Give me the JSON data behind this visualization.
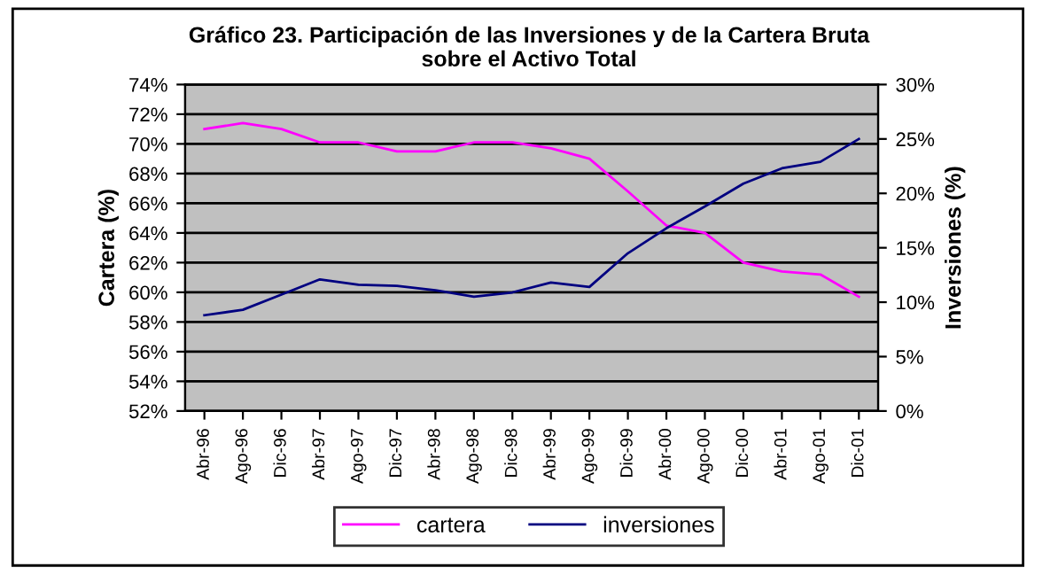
{
  "chart_data": {
    "type": "line",
    "title": "Gráfico 23. Participación de las Inversiones y de la Cartera Bruta\nsobre el Activo Total",
    "ylabel": "Cartera (%)",
    "y2label": "Inversiones (%)",
    "categories": [
      "Abr-96",
      "Ago-96",
      "Dic-96",
      "Abr-97",
      "Ago-97",
      "Dic-97",
      "Abr-98",
      "Ago-98",
      "Dic-98",
      "Abr-99",
      "Ago-99",
      "Dic-99",
      "Abr-00",
      "Ago-00",
      "Dic-00",
      "Abr-01",
      "Ago-01",
      "Dic-01"
    ],
    "series": [
      {
        "name": "cartera",
        "color": "#ff00ff",
        "values": [
          71.0,
          71.4,
          71.0,
          70.1,
          70.1,
          69.5,
          69.5,
          70.1,
          70.1,
          69.7,
          69.0,
          66.8,
          64.5,
          64.0,
          62.0,
          61.4,
          61.2,
          59.7
        ]
      },
      {
        "name": "inversiones",
        "color": "#000080",
        "axis": "y2",
        "values": [
          8.8,
          9.3,
          10.7,
          12.1,
          11.6,
          11.5,
          11.1,
          10.5,
          10.9,
          11.8,
          11.4,
          14.5,
          16.8,
          18.8,
          20.9,
          22.3,
          22.9,
          25.0
        ]
      }
    ],
    "ylim": [
      52,
      74
    ],
    "yticks": [
      {
        "value": 52,
        "label": "52%"
      },
      {
        "value": 54,
        "label": "54%"
      },
      {
        "value": 56,
        "label": "56%"
      },
      {
        "value": 58,
        "label": "58%"
      },
      {
        "value": 60,
        "label": "60%"
      },
      {
        "value": 62,
        "label": "62%"
      },
      {
        "value": 64,
        "label": "64%"
      },
      {
        "value": 66,
        "label": "66%"
      },
      {
        "value": 68,
        "label": "68%"
      },
      {
        "value": 70,
        "label": "70%"
      },
      {
        "value": 72,
        "label": "72%"
      },
      {
        "value": 74,
        "label": "74%"
      }
    ],
    "y2lim": [
      0,
      30
    ],
    "y2ticks": [
      {
        "value": 0,
        "label": "0%"
      },
      {
        "value": 5,
        "label": "5%"
      },
      {
        "value": 10,
        "label": "10%"
      },
      {
        "value": 15,
        "label": "15%"
      },
      {
        "value": 20,
        "label": "20%"
      },
      {
        "value": 25,
        "label": "25%"
      },
      {
        "value": 30,
        "label": "30%"
      }
    ],
    "grid": "y",
    "legend": "bottom",
    "marker": "none",
    "line_style": "solid"
  }
}
